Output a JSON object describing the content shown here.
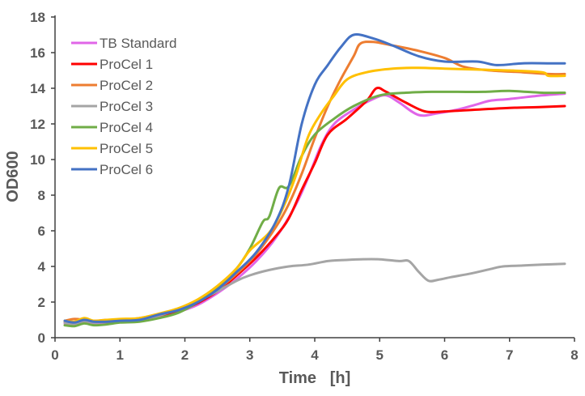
{
  "chart_data": {
    "type": "line",
    "title": "",
    "xlabel": "Time   [h]",
    "ylabel": "OD600",
    "xlim": [
      0,
      8
    ],
    "ylim": [
      0,
      18
    ],
    "xticks": [
      "0",
      "1",
      "2",
      "3",
      "4",
      "5",
      "6",
      "7",
      "8"
    ],
    "yticks": [
      "0",
      "2",
      "4",
      "6",
      "8",
      "10",
      "12",
      "14",
      "16",
      "18"
    ],
    "grid": false,
    "legend_position": "top-left",
    "series": [
      {
        "name": "TB Standard",
        "color": "#E066E8",
        "points": [
          [
            0.15,
            0.8
          ],
          [
            0.3,
            0.75
          ],
          [
            0.45,
            0.9
          ],
          [
            0.6,
            0.8
          ],
          [
            0.8,
            0.85
          ],
          [
            1,
            0.9
          ],
          [
            1.3,
            1.0
          ],
          [
            1.6,
            1.2
          ],
          [
            1.9,
            1.45
          ],
          [
            2.2,
            1.85
          ],
          [
            2.5,
            2.5
          ],
          [
            2.8,
            3.3
          ],
          [
            3.1,
            4.3
          ],
          [
            3.4,
            5.6
          ],
          [
            3.7,
            7.4
          ],
          [
            3.9,
            9.0
          ],
          [
            4.1,
            10.8
          ],
          [
            4.3,
            12.0
          ],
          [
            4.6,
            12.8
          ],
          [
            4.9,
            13.4
          ],
          [
            5.1,
            13.6
          ],
          [
            5.3,
            13.2
          ],
          [
            5.6,
            12.5
          ],
          [
            5.9,
            12.6
          ],
          [
            6.2,
            12.8
          ],
          [
            6.5,
            13.1
          ],
          [
            6.7,
            13.3
          ],
          [
            7.0,
            13.4
          ],
          [
            7.5,
            13.6
          ],
          [
            7.85,
            13.7
          ]
        ]
      },
      {
        "name": "ProCel 1",
        "color": "#FF0000",
        "points": [
          [
            0.15,
            0.9
          ],
          [
            0.3,
            0.85
          ],
          [
            0.45,
            1.0
          ],
          [
            0.6,
            0.9
          ],
          [
            0.8,
            0.9
          ],
          [
            1,
            0.95
          ],
          [
            1.3,
            1.05
          ],
          [
            1.6,
            1.25
          ],
          [
            1.9,
            1.5
          ],
          [
            2.2,
            1.95
          ],
          [
            2.5,
            2.6
          ],
          [
            2.8,
            3.5
          ],
          [
            3.1,
            4.5
          ],
          [
            3.4,
            5.7
          ],
          [
            3.6,
            6.7
          ],
          [
            3.8,
            8.3
          ],
          [
            4.0,
            9.8
          ],
          [
            4.2,
            11.4
          ],
          [
            4.5,
            12.3
          ],
          [
            4.8,
            13.3
          ],
          [
            4.95,
            14.0
          ],
          [
            5.1,
            13.8
          ],
          [
            5.4,
            13.2
          ],
          [
            5.7,
            12.7
          ],
          [
            6.0,
            12.7
          ],
          [
            6.5,
            12.8
          ],
          [
            7.0,
            12.9
          ],
          [
            7.5,
            12.95
          ],
          [
            7.85,
            13.0
          ]
        ]
      },
      {
        "name": "ProCel 2",
        "color": "#ED7D31",
        "points": [
          [
            0.15,
            0.95
          ],
          [
            0.3,
            1.05
          ],
          [
            0.45,
            1.0
          ],
          [
            0.6,
            0.95
          ],
          [
            0.8,
            1.0
          ],
          [
            1,
            1.0
          ],
          [
            1.3,
            1.1
          ],
          [
            1.6,
            1.3
          ],
          [
            1.9,
            1.6
          ],
          [
            2.2,
            2.05
          ],
          [
            2.5,
            2.7
          ],
          [
            2.8,
            3.6
          ],
          [
            3.1,
            4.7
          ],
          [
            3.4,
            6.2
          ],
          [
            3.6,
            7.5
          ],
          [
            3.8,
            9.2
          ],
          [
            4.0,
            11.2
          ],
          [
            4.2,
            13.0
          ],
          [
            4.4,
            14.5
          ],
          [
            4.6,
            15.8
          ],
          [
            4.7,
            16.5
          ],
          [
            4.9,
            16.6
          ],
          [
            5.2,
            16.4
          ],
          [
            5.6,
            16.1
          ],
          [
            6.0,
            15.7
          ],
          [
            6.3,
            15.2
          ],
          [
            6.7,
            15.0
          ],
          [
            7.2,
            14.9
          ],
          [
            7.6,
            14.8
          ],
          [
            7.85,
            14.8
          ]
        ]
      },
      {
        "name": "ProCel 3",
        "color": "#A5A5A5",
        "points": [
          [
            0.15,
            0.85
          ],
          [
            0.3,
            0.8
          ],
          [
            0.45,
            0.95
          ],
          [
            0.6,
            0.85
          ],
          [
            0.8,
            0.9
          ],
          [
            1,
            0.95
          ],
          [
            1.3,
            1.05
          ],
          [
            1.6,
            1.25
          ],
          [
            1.9,
            1.6
          ],
          [
            2.2,
            2.05
          ],
          [
            2.5,
            2.6
          ],
          [
            2.8,
            3.2
          ],
          [
            3.0,
            3.5
          ],
          [
            3.3,
            3.8
          ],
          [
            3.6,
            4.0
          ],
          [
            3.9,
            4.1
          ],
          [
            4.2,
            4.3
          ],
          [
            4.4,
            4.35
          ],
          [
            4.7,
            4.4
          ],
          [
            5.0,
            4.4
          ],
          [
            5.3,
            4.3
          ],
          [
            5.45,
            4.3
          ],
          [
            5.6,
            3.7
          ],
          [
            5.75,
            3.2
          ],
          [
            5.9,
            3.25
          ],
          [
            6.1,
            3.4
          ],
          [
            6.4,
            3.6
          ],
          [
            6.7,
            3.85
          ],
          [
            6.9,
            4.0
          ],
          [
            7.2,
            4.05
          ],
          [
            7.5,
            4.1
          ],
          [
            7.85,
            4.15
          ]
        ]
      },
      {
        "name": "ProCel 4",
        "color": "#70AD47",
        "points": [
          [
            0.15,
            0.7
          ],
          [
            0.3,
            0.65
          ],
          [
            0.45,
            0.8
          ],
          [
            0.6,
            0.7
          ],
          [
            0.8,
            0.75
          ],
          [
            1,
            0.85
          ],
          [
            1.3,
            0.9
          ],
          [
            1.6,
            1.1
          ],
          [
            1.9,
            1.4
          ],
          [
            2.2,
            2.0
          ],
          [
            2.5,
            2.8
          ],
          [
            2.8,
            3.9
          ],
          [
            3.0,
            5.0
          ],
          [
            3.2,
            6.5
          ],
          [
            3.3,
            6.8
          ],
          [
            3.45,
            8.4
          ],
          [
            3.6,
            8.5
          ],
          [
            3.8,
            10.2
          ],
          [
            4.0,
            11.4
          ],
          [
            4.3,
            12.3
          ],
          [
            4.6,
            13.0
          ],
          [
            5.0,
            13.6
          ],
          [
            5.4,
            13.75
          ],
          [
            5.8,
            13.8
          ],
          [
            6.2,
            13.8
          ],
          [
            6.6,
            13.8
          ],
          [
            7.0,
            13.85
          ],
          [
            7.5,
            13.75
          ],
          [
            7.85,
            13.75
          ]
        ]
      },
      {
        "name": "ProCel 5",
        "color": "#FFC000",
        "points": [
          [
            0.15,
            0.95
          ],
          [
            0.3,
            0.9
          ],
          [
            0.45,
            1.1
          ],
          [
            0.6,
            0.95
          ],
          [
            0.8,
            1.0
          ],
          [
            1,
            1.05
          ],
          [
            1.3,
            1.1
          ],
          [
            1.6,
            1.35
          ],
          [
            1.9,
            1.65
          ],
          [
            2.2,
            2.15
          ],
          [
            2.5,
            2.9
          ],
          [
            2.8,
            3.9
          ],
          [
            3.0,
            4.9
          ],
          [
            3.3,
            5.9
          ],
          [
            3.5,
            7.2
          ],
          [
            3.7,
            9.0
          ],
          [
            3.9,
            11.3
          ],
          [
            4.1,
            12.6
          ],
          [
            4.3,
            13.6
          ],
          [
            4.5,
            14.5
          ],
          [
            4.8,
            14.9
          ],
          [
            5.2,
            15.1
          ],
          [
            5.6,
            15.15
          ],
          [
            6.0,
            15.1
          ],
          [
            6.5,
            15.05
          ],
          [
            7.0,
            15.0
          ],
          [
            7.5,
            14.9
          ],
          [
            7.6,
            14.7
          ],
          [
            7.85,
            14.7
          ]
        ]
      },
      {
        "name": "ProCel 6",
        "color": "#4472C4",
        "points": [
          [
            0.15,
            0.95
          ],
          [
            0.3,
            0.85
          ],
          [
            0.45,
            1.0
          ],
          [
            0.6,
            0.9
          ],
          [
            0.8,
            0.9
          ],
          [
            1,
            0.95
          ],
          [
            1.3,
            1.0
          ],
          [
            1.6,
            1.3
          ],
          [
            1.9,
            1.55
          ],
          [
            2.2,
            2.0
          ],
          [
            2.5,
            2.7
          ],
          [
            2.8,
            3.7
          ],
          [
            3.1,
            4.8
          ],
          [
            3.4,
            6.5
          ],
          [
            3.6,
            8.5
          ],
          [
            3.8,
            12.0
          ],
          [
            4.0,
            14.2
          ],
          [
            4.2,
            15.3
          ],
          [
            4.4,
            16.3
          ],
          [
            4.6,
            17.0
          ],
          [
            4.9,
            16.8
          ],
          [
            5.2,
            16.4
          ],
          [
            5.6,
            15.8
          ],
          [
            6.0,
            15.5
          ],
          [
            6.5,
            15.5
          ],
          [
            6.8,
            15.3
          ],
          [
            7.2,
            15.4
          ],
          [
            7.6,
            15.4
          ],
          [
            7.85,
            15.4
          ]
        ]
      }
    ]
  }
}
